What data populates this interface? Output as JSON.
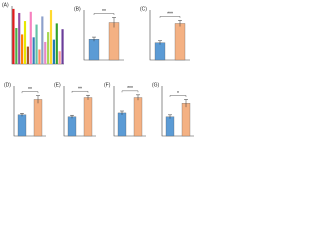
{
  "chart_data": [
    {
      "type": "bar",
      "label": "(A)",
      "categories": [
        null,
        null,
        null,
        null,
        null,
        null,
        null,
        null,
        null,
        null,
        null,
        null,
        null,
        null,
        null,
        null,
        null,
        null
      ],
      "values": [
        9.5,
        6.2,
        8.8,
        5.1,
        7.4,
        3.0,
        9.0,
        4.6,
        6.8,
        2.5,
        8.2,
        3.8,
        5.5,
        9.3,
        4.2,
        7.0,
        2.2,
        6.0
      ],
      "colors": [
        "#e41a1c",
        "#4daf4a",
        "#984ea3",
        "#ff7f00",
        "#e7e700",
        "#a65628",
        "#f781bf",
        "#377eb8",
        "#66c2a5",
        "#fc8d62",
        "#8da0cb",
        "#e78ac3",
        "#a6d854",
        "#ffd92f",
        "#1f78b4",
        "#33a02c",
        "#fb9a99",
        "#6a3d9a"
      ],
      "ylim": [
        0,
        10
      ]
    },
    {
      "type": "bar",
      "label": "(B)",
      "categories": [
        null,
        null
      ],
      "values": [
        0.5,
        0.9
      ],
      "errors": [
        0.05,
        0.12
      ],
      "colors": [
        "#5b9bd5",
        "#f4b183"
      ],
      "annotation": "**",
      "ylim": [
        0,
        1.2
      ]
    },
    {
      "type": "bar",
      "label": "(C)",
      "categories": [
        null,
        null
      ],
      "values": [
        0.45,
        0.95
      ],
      "errors": [
        0.05,
        0.08
      ],
      "colors": [
        "#5b9bd5",
        "#f4b183"
      ],
      "annotation": "***",
      "ylim": [
        0,
        1.3
      ]
    },
    {
      "type": "bar",
      "label": "(D)",
      "categories": [
        null,
        null
      ],
      "values": [
        0.55,
        0.95
      ],
      "errors": [
        0.04,
        0.1
      ],
      "colors": [
        "#5b9bd5",
        "#f4b183"
      ],
      "annotation": "**",
      "ylim": [
        0,
        1.3
      ]
    },
    {
      "type": "bar",
      "label": "(E)",
      "categories": [
        null,
        null
      ],
      "values": [
        0.5,
        1.0
      ],
      "errors": [
        0.04,
        0.06
      ],
      "colors": [
        "#5b9bd5",
        "#f4b183"
      ],
      "annotation": "**",
      "ylim": [
        0,
        1.3
      ]
    },
    {
      "type": "bar",
      "label": "(F)",
      "categories": [
        null,
        null
      ],
      "values": [
        0.6,
        1.0
      ],
      "errors": [
        0.05,
        0.07
      ],
      "colors": [
        "#5b9bd5",
        "#f4b183"
      ],
      "annotation": "***",
      "ylim": [
        0,
        1.3
      ]
    },
    {
      "type": "bar",
      "label": "(G)",
      "categories": [
        null,
        null
      ],
      "values": [
        0.5,
        0.85
      ],
      "errors": [
        0.05,
        0.1
      ],
      "colors": [
        "#5b9bd5",
        "#f4b183"
      ],
      "annotation": "*",
      "ylim": [
        0,
        1.3
      ]
    }
  ]
}
